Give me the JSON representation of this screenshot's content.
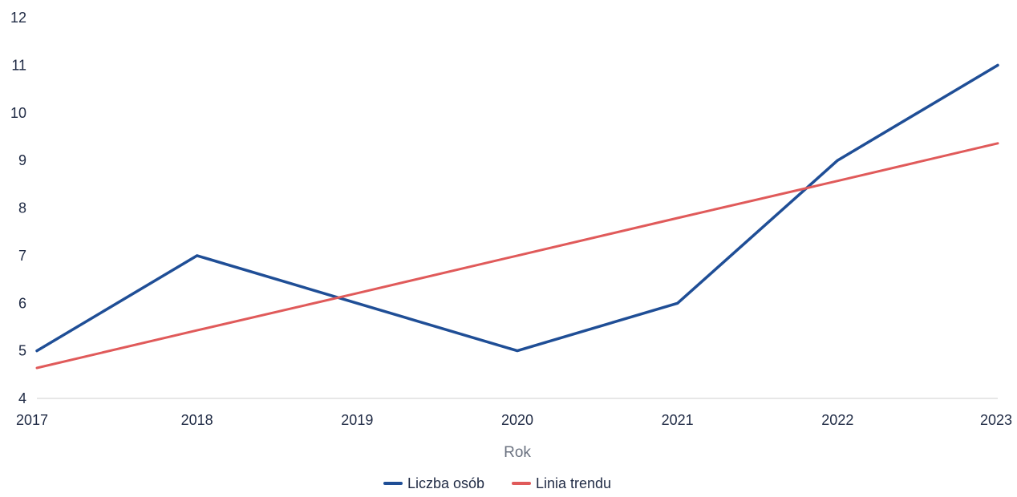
{
  "chart_data": {
    "type": "line",
    "x": [
      "2017",
      "2018",
      "2019",
      "2020",
      "2021",
      "2022",
      "2023"
    ],
    "xlabel": "Rok",
    "ylabel": "",
    "ylim": [
      4,
      12
    ],
    "yticks": [
      "4",
      "5",
      "6",
      "7",
      "8",
      "9",
      "10",
      "11",
      "12"
    ],
    "grid": false,
    "legend_position": "bottom",
    "series": [
      {
        "name": "Liczba osób",
        "color": "#1f4e96",
        "values": [
          5,
          7,
          6,
          5,
          6,
          9,
          11
        ]
      },
      {
        "name": "Linia trendu",
        "color": "#e05a5a",
        "values": [
          4.64,
          5.43,
          6.21,
          7.0,
          7.79,
          8.57,
          9.36
        ]
      }
    ]
  }
}
